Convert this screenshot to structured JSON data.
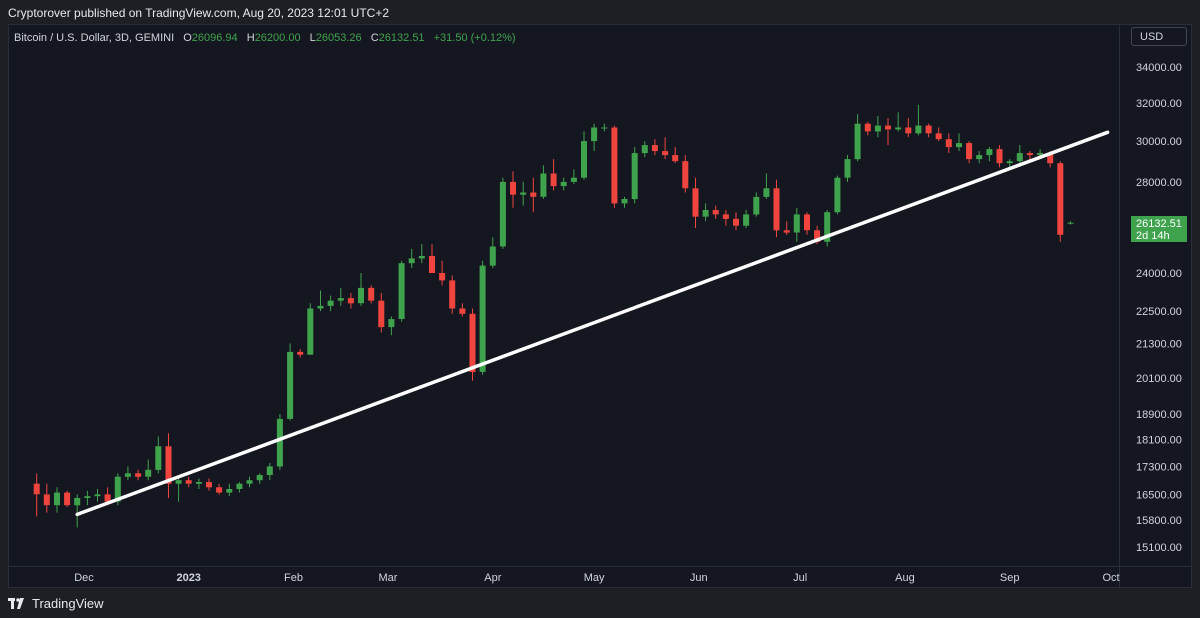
{
  "header": {
    "publisher": "Cryptorover published on TradingView.com, Aug 20, 2023 12:01 UTC+2"
  },
  "legend": {
    "symbol": "Bitcoin / U.S. Dollar, 3D, GEMINI",
    "o_label": "O",
    "o_value": "26096.94",
    "h_label": "H",
    "h_value": "26200.00",
    "l_label": "L",
    "l_value": "26053.26",
    "c_label": "C",
    "c_value": "26132.51",
    "change": "+31.50 (+0.12%)"
  },
  "currency": "USD",
  "last_price": {
    "price": "26132.51",
    "countdown": "2d 14h"
  },
  "footer": {
    "brand": "TradingView"
  },
  "colors": {
    "up": "#3fa34d",
    "down": "#f0453f",
    "background": "#151720",
    "trendline": "#ffffff"
  },
  "chart_data": {
    "type": "candlestick",
    "x_ticks": [
      {
        "label": "Dec",
        "date": "2022-12-01",
        "bold": false
      },
      {
        "label": "2023",
        "date": "2023-01-01",
        "bold": true
      },
      {
        "label": "Feb",
        "date": "2023-02-01",
        "bold": false
      },
      {
        "label": "Mar",
        "date": "2023-03-01",
        "bold": false
      },
      {
        "label": "Apr",
        "date": "2023-04-01",
        "bold": false
      },
      {
        "label": "May",
        "date": "2023-05-01",
        "bold": false
      },
      {
        "label": "Jun",
        "date": "2023-06-01",
        "bold": false
      },
      {
        "label": "Jul",
        "date": "2023-07-01",
        "bold": false
      },
      {
        "label": "Aug",
        "date": "2023-08-01",
        "bold": false
      },
      {
        "label": "Sep",
        "date": "2023-09-01",
        "bold": false
      },
      {
        "label": "Oct",
        "date": "2023-10-01",
        "bold": false
      }
    ],
    "y_ticks": [
      "34000.00",
      "32000.00",
      "30000.00",
      "28000.00",
      "24000.00",
      "22500.00",
      "21300.00",
      "20100.00",
      "18900.00",
      "18100.00",
      "17300.00",
      "16500.00",
      "15800.00",
      "15100.00"
    ],
    "y_scale": "log",
    "candles": [
      {
        "date": "2022-11-17",
        "o": 16800,
        "h": 17100,
        "l": 15900,
        "c": 16500
      },
      {
        "date": "2022-11-20",
        "o": 16500,
        "h": 16800,
        "l": 16000,
        "c": 16200
      },
      {
        "date": "2022-11-23",
        "o": 16200,
        "h": 16700,
        "l": 16000,
        "c": 16550
      },
      {
        "date": "2022-11-26",
        "o": 16550,
        "h": 16600,
        "l": 16150,
        "c": 16200
      },
      {
        "date": "2022-11-29",
        "o": 16200,
        "h": 16500,
        "l": 15600,
        "c": 16400
      },
      {
        "date": "2022-12-02",
        "o": 16400,
        "h": 16600,
        "l": 16200,
        "c": 16450
      },
      {
        "date": "2022-12-05",
        "o": 16450,
        "h": 16650,
        "l": 16300,
        "c": 16500
      },
      {
        "date": "2022-12-08",
        "o": 16500,
        "h": 16700,
        "l": 16200,
        "c": 16300
      },
      {
        "date": "2022-12-11",
        "o": 16300,
        "h": 17100,
        "l": 16200,
        "c": 17000
      },
      {
        "date": "2022-12-14",
        "o": 17000,
        "h": 17300,
        "l": 16900,
        "c": 17100
      },
      {
        "date": "2022-12-17",
        "o": 17100,
        "h": 17200,
        "l": 16900,
        "c": 17000
      },
      {
        "date": "2022-12-20",
        "o": 17000,
        "h": 17500,
        "l": 16900,
        "c": 17200
      },
      {
        "date": "2022-12-23",
        "o": 17200,
        "h": 18200,
        "l": 17100,
        "c": 17900
      },
      {
        "date": "2022-12-26",
        "o": 17900,
        "h": 18300,
        "l": 16400,
        "c": 16800
      },
      {
        "date": "2022-12-29",
        "o": 16800,
        "h": 17000,
        "l": 16300,
        "c": 16900
      },
      {
        "date": "2023-01-01",
        "o": 16900,
        "h": 17000,
        "l": 16700,
        "c": 16800
      },
      {
        "date": "2023-01-04",
        "o": 16800,
        "h": 16950,
        "l": 16650,
        "c": 16850
      },
      {
        "date": "2023-01-07",
        "o": 16850,
        "h": 16950,
        "l": 16600,
        "c": 16700
      },
      {
        "date": "2023-01-10",
        "o": 16700,
        "h": 16800,
        "l": 16500,
        "c": 16550
      },
      {
        "date": "2023-01-13",
        "o": 16550,
        "h": 16800,
        "l": 16450,
        "c": 16650
      },
      {
        "date": "2023-01-16",
        "o": 16650,
        "h": 16850,
        "l": 16550,
        "c": 16800
      },
      {
        "date": "2023-01-19",
        "o": 16800,
        "h": 17000,
        "l": 16700,
        "c": 16900
      },
      {
        "date": "2023-01-22",
        "o": 16900,
        "h": 17100,
        "l": 16800,
        "c": 17050
      },
      {
        "date": "2023-01-25",
        "o": 17050,
        "h": 17400,
        "l": 16900,
        "c": 17300
      },
      {
        "date": "2023-01-28",
        "o": 17300,
        "h": 18900,
        "l": 17200,
        "c": 18750
      },
      {
        "date": "2023-01-31",
        "o": 18750,
        "h": 21300,
        "l": 18700,
        "c": 21000
      },
      {
        "date": "2023-02-03",
        "o": 21000,
        "h": 21100,
        "l": 20800,
        "c": 20900
      },
      {
        "date": "2023-02-06",
        "o": 20900,
        "h": 22800,
        "l": 20900,
        "c": 22600
      },
      {
        "date": "2023-02-09",
        "o": 22600,
        "h": 23300,
        "l": 22500,
        "c": 22700
      },
      {
        "date": "2023-02-12",
        "o": 22700,
        "h": 23100,
        "l": 22500,
        "c": 22900
      },
      {
        "date": "2023-02-15",
        "o": 22900,
        "h": 23400,
        "l": 22700,
        "c": 23000
      },
      {
        "date": "2023-02-18",
        "o": 23000,
        "h": 23200,
        "l": 22600,
        "c": 22800
      },
      {
        "date": "2023-02-21",
        "o": 22800,
        "h": 24000,
        "l": 22700,
        "c": 23400
      },
      {
        "date": "2023-02-24",
        "o": 23400,
        "h": 23500,
        "l": 22800,
        "c": 22900
      },
      {
        "date": "2023-02-27",
        "o": 22900,
        "h": 23200,
        "l": 21700,
        "c": 21900
      },
      {
        "date": "2023-03-02",
        "o": 21900,
        "h": 22300,
        "l": 21600,
        "c": 22200
      },
      {
        "date": "2023-03-05",
        "o": 22200,
        "h": 24500,
        "l": 22100,
        "c": 24400
      },
      {
        "date": "2023-03-08",
        "o": 24400,
        "h": 25000,
        "l": 24200,
        "c": 24600
      },
      {
        "date": "2023-03-11",
        "o": 24600,
        "h": 25200,
        "l": 24400,
        "c": 24700
      },
      {
        "date": "2023-03-14",
        "o": 24700,
        "h": 25200,
        "l": 24000,
        "c": 24000
      },
      {
        "date": "2023-03-17",
        "o": 24000,
        "h": 24500,
        "l": 23500,
        "c": 23700
      },
      {
        "date": "2023-03-20",
        "o": 23700,
        "h": 23900,
        "l": 22400,
        "c": 22600
      },
      {
        "date": "2023-03-23",
        "o": 22600,
        "h": 22800,
        "l": 22300,
        "c": 22400
      },
      {
        "date": "2023-03-26",
        "o": 22400,
        "h": 22600,
        "l": 20000,
        "c": 20300
      },
      {
        "date": "2023-03-29",
        "o": 20300,
        "h": 24500,
        "l": 20200,
        "c": 24300
      },
      {
        "date": "2023-04-01",
        "o": 24300,
        "h": 25500,
        "l": 24200,
        "c": 25100
      },
      {
        "date": "2023-04-04",
        "o": 25100,
        "h": 28200,
        "l": 25000,
        "c": 28000
      },
      {
        "date": "2023-04-07",
        "o": 28000,
        "h": 28500,
        "l": 26800,
        "c": 27400
      },
      {
        "date": "2023-04-10",
        "o": 27400,
        "h": 28000,
        "l": 26900,
        "c": 27500
      },
      {
        "date": "2023-04-13",
        "o": 27500,
        "h": 28200,
        "l": 26600,
        "c": 27300
      },
      {
        "date": "2023-04-16",
        "o": 27300,
        "h": 28800,
        "l": 27200,
        "c": 28400
      },
      {
        "date": "2023-04-19",
        "o": 28400,
        "h": 29100,
        "l": 27600,
        "c": 27800
      },
      {
        "date": "2023-04-22",
        "o": 27800,
        "h": 28200,
        "l": 27600,
        "c": 28000
      },
      {
        "date": "2023-04-25",
        "o": 28000,
        "h": 28600,
        "l": 27900,
        "c": 28200
      },
      {
        "date": "2023-04-28",
        "o": 28200,
        "h": 30500,
        "l": 28100,
        "c": 30000
      },
      {
        "date": "2023-05-01",
        "o": 30000,
        "h": 30900,
        "l": 29500,
        "c": 30700
      },
      {
        "date": "2023-05-04",
        "o": 30700,
        "h": 30900,
        "l": 30500,
        "c": 30700
      },
      {
        "date": "2023-05-07",
        "o": 30700,
        "h": 30800,
        "l": 26800,
        "c": 27000
      },
      {
        "date": "2023-05-10",
        "o": 27000,
        "h": 27300,
        "l": 26800,
        "c": 27200
      },
      {
        "date": "2023-05-13",
        "o": 27200,
        "h": 29700,
        "l": 27000,
        "c": 29400
      },
      {
        "date": "2023-05-16",
        "o": 29400,
        "h": 30000,
        "l": 29200,
        "c": 29800
      },
      {
        "date": "2023-05-19",
        "o": 29800,
        "h": 30100,
        "l": 29300,
        "c": 29500
      },
      {
        "date": "2023-05-22",
        "o": 29500,
        "h": 30200,
        "l": 29100,
        "c": 29300
      },
      {
        "date": "2023-05-25",
        "o": 29300,
        "h": 29700,
        "l": 28900,
        "c": 29000
      },
      {
        "date": "2023-05-28",
        "o": 29000,
        "h": 29300,
        "l": 27500,
        "c": 27700
      },
      {
        "date": "2023-05-31",
        "o": 27700,
        "h": 28200,
        "l": 25900,
        "c": 26400
      },
      {
        "date": "2023-06-03",
        "o": 26400,
        "h": 27000,
        "l": 26200,
        "c": 26700
      },
      {
        "date": "2023-06-06",
        "o": 26700,
        "h": 26900,
        "l": 26300,
        "c": 26500
      },
      {
        "date": "2023-06-09",
        "o": 26500,
        "h": 26700,
        "l": 26000,
        "c": 26300
      },
      {
        "date": "2023-06-12",
        "o": 26300,
        "h": 26600,
        "l": 25800,
        "c": 26000
      },
      {
        "date": "2023-06-15",
        "o": 26000,
        "h": 26700,
        "l": 25900,
        "c": 26500
      },
      {
        "date": "2023-06-18",
        "o": 26500,
        "h": 27500,
        "l": 26400,
        "c": 27300
      },
      {
        "date": "2023-06-21",
        "o": 27300,
        "h": 28400,
        "l": 27200,
        "c": 27700
      },
      {
        "date": "2023-06-24",
        "o": 27700,
        "h": 28100,
        "l": 25500,
        "c": 25800
      },
      {
        "date": "2023-06-27",
        "o": 25800,
        "h": 26200,
        "l": 25600,
        "c": 25700
      },
      {
        "date": "2023-06-30",
        "o": 25700,
        "h": 26800,
        "l": 25300,
        "c": 26500
      },
      {
        "date": "2023-07-03",
        "o": 26500,
        "h": 26600,
        "l": 25600,
        "c": 25800
      },
      {
        "date": "2023-07-06",
        "o": 25800,
        "h": 26000,
        "l": 25200,
        "c": 25300
      },
      {
        "date": "2023-07-09",
        "o": 25300,
        "h": 26700,
        "l": 25100,
        "c": 26600
      },
      {
        "date": "2023-07-12",
        "o": 26600,
        "h": 28300,
        "l": 26500,
        "c": 28200
      },
      {
        "date": "2023-07-15",
        "o": 28200,
        "h": 29300,
        "l": 28000,
        "c": 29100
      },
      {
        "date": "2023-07-18",
        "o": 29100,
        "h": 31400,
        "l": 29000,
        "c": 30900
      },
      {
        "date": "2023-07-21",
        "o": 30900,
        "h": 31000,
        "l": 30300,
        "c": 30500
      },
      {
        "date": "2023-07-24",
        "o": 30500,
        "h": 31300,
        "l": 30200,
        "c": 30800
      },
      {
        "date": "2023-07-27",
        "o": 30800,
        "h": 31200,
        "l": 29800,
        "c": 30600
      },
      {
        "date": "2023-07-30",
        "o": 30600,
        "h": 31500,
        "l": 30500,
        "c": 30700
      },
      {
        "date": "2023-08-02",
        "o": 30700,
        "h": 31200,
        "l": 30200,
        "c": 30400
      },
      {
        "date": "2023-08-05",
        "o": 30400,
        "h": 31900,
        "l": 30300,
        "c": 30800
      },
      {
        "date": "2023-08-08",
        "o": 30800,
        "h": 30900,
        "l": 30200,
        "c": 30400
      },
      {
        "date": "2023-08-11",
        "o": 30400,
        "h": 30700,
        "l": 30000,
        "c": 30100
      },
      {
        "date": "2023-08-14",
        "o": 30100,
        "h": 30400,
        "l": 29400,
        "c": 29700
      },
      {
        "date": "2023-08-17",
        "o": 29700,
        "h": 30400,
        "l": 29500,
        "c": 29900
      },
      {
        "date": "2023-08-20",
        "o": 29900,
        "h": 30000,
        "l": 28900,
        "c": 29100
      },
      {
        "date": "2023-08-23",
        "o": 29100,
        "h": 29500,
        "l": 28900,
        "c": 29300
      },
      {
        "date": "2023-08-26",
        "o": 29300,
        "h": 29700,
        "l": 29000,
        "c": 29600
      },
      {
        "date": "2023-08-29",
        "o": 29600,
        "h": 29800,
        "l": 28700,
        "c": 28900
      },
      {
        "date": "2023-09-01",
        "o": 28900,
        "h": 29100,
        "l": 28700,
        "c": 29000
      },
      {
        "date": "2023-09-04",
        "o": 29000,
        "h": 29800,
        "l": 28900,
        "c": 29400
      },
      {
        "date": "2023-09-07",
        "o": 29400,
        "h": 29500,
        "l": 29000,
        "c": 29300
      },
      {
        "date": "2023-09-10",
        "o": 29300,
        "h": 29600,
        "l": 29100,
        "c": 29400
      },
      {
        "date": "2023-09-13",
        "o": 29400,
        "h": 29500,
        "l": 28700,
        "c": 28900
      },
      {
        "date": "2023-09-16",
        "o": 28900,
        "h": 29000,
        "l": 25300,
        "c": 25600
      },
      {
        "date": "2023-09-19",
        "o": 26096.94,
        "h": 26200,
        "l": 26053.26,
        "c": 26132.51
      }
    ],
    "trendline": {
      "start": {
        "date": "2022-11-29",
        "price": 15950
      },
      "end": {
        "date": "2023-09-30",
        "price": 30450
      }
    },
    "last_value": 26132.51
  }
}
